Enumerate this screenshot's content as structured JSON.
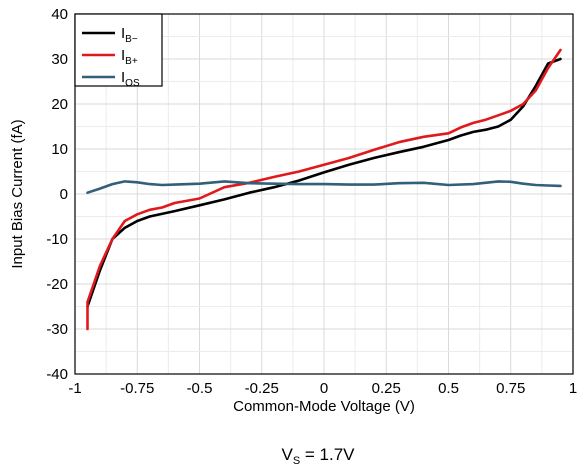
{
  "chart_data": {
    "type": "line",
    "title": "",
    "xlabel": "Common-Mode Voltage (V)",
    "ylabel": "Input Bias Current (fA)",
    "xlim": [
      -1,
      1
    ],
    "ylim": [
      -40,
      40
    ],
    "xticks": [
      "-1",
      "-0.75",
      "-0.5",
      "-0.25",
      "0",
      "0.25",
      "0.5",
      "0.75",
      "1"
    ],
    "yticks": [
      "40",
      "30",
      "20",
      "10",
      "0",
      "-10",
      "-20",
      "-30",
      "-40"
    ],
    "grid": true,
    "legend_position": "top-left",
    "series": [
      {
        "name_main": "I",
        "name_sub": "B−",
        "color": "#000000",
        "x": [
          -0.95,
          -0.9,
          -0.85,
          -0.8,
          -0.75,
          -0.7,
          -0.6,
          -0.5,
          -0.4,
          -0.3,
          -0.2,
          -0.1,
          0,
          0.1,
          0.2,
          0.3,
          0.4,
          0.5,
          0.55,
          0.6,
          0.65,
          0.7,
          0.75,
          0.8,
          0.85,
          0.9,
          0.95
        ],
        "y": [
          -25,
          -17,
          -10,
          -7.5,
          -6,
          -5,
          -3.8,
          -2.5,
          -1.2,
          0.3,
          1.5,
          3,
          4.8,
          6.5,
          8,
          9.3,
          10.5,
          12,
          13,
          13.8,
          14.3,
          15,
          16.5,
          19.5,
          24,
          29,
          30
        ]
      },
      {
        "name_main": "I",
        "name_sub": "B+",
        "color": "#e0191c",
        "x": [
          -0.95,
          -0.95,
          -0.9,
          -0.85,
          -0.8,
          -0.75,
          -0.7,
          -0.65,
          -0.6,
          -0.5,
          -0.4,
          -0.3,
          -0.2,
          -0.1,
          0,
          0.1,
          0.2,
          0.3,
          0.4,
          0.5,
          0.55,
          0.6,
          0.65,
          0.7,
          0.75,
          0.8,
          0.85,
          0.9,
          0.95
        ],
        "y": [
          -30,
          -24,
          -16,
          -10,
          -6,
          -4.5,
          -3.5,
          -3,
          -2,
          -1,
          1.5,
          2.5,
          3.8,
          5,
          6.5,
          8,
          9.8,
          11.5,
          12.7,
          13.5,
          14.8,
          15.8,
          16.5,
          17.5,
          18.5,
          20,
          23,
          28,
          32
        ]
      },
      {
        "name_main": "I",
        "name_sub": "OS",
        "color": "#335f7a",
        "x": [
          -0.95,
          -0.9,
          -0.85,
          -0.8,
          -0.75,
          -0.7,
          -0.65,
          -0.6,
          -0.5,
          -0.4,
          -0.3,
          -0.2,
          -0.1,
          0,
          0.1,
          0.2,
          0.3,
          0.4,
          0.5,
          0.6,
          0.7,
          0.75,
          0.8,
          0.85,
          0.9,
          0.95
        ],
        "y": [
          0.3,
          1.2,
          2.2,
          2.8,
          2.6,
          2.2,
          2,
          2.1,
          2.3,
          2.8,
          2.4,
          2.3,
          2.2,
          2.2,
          2.1,
          2.1,
          2.4,
          2.5,
          2,
          2.2,
          2.8,
          2.7,
          2.3,
          2,
          1.9,
          1.8
        ]
      }
    ],
    "caption_main": "V",
    "caption_sub": "S",
    "caption_rest": " = 1.7V"
  }
}
